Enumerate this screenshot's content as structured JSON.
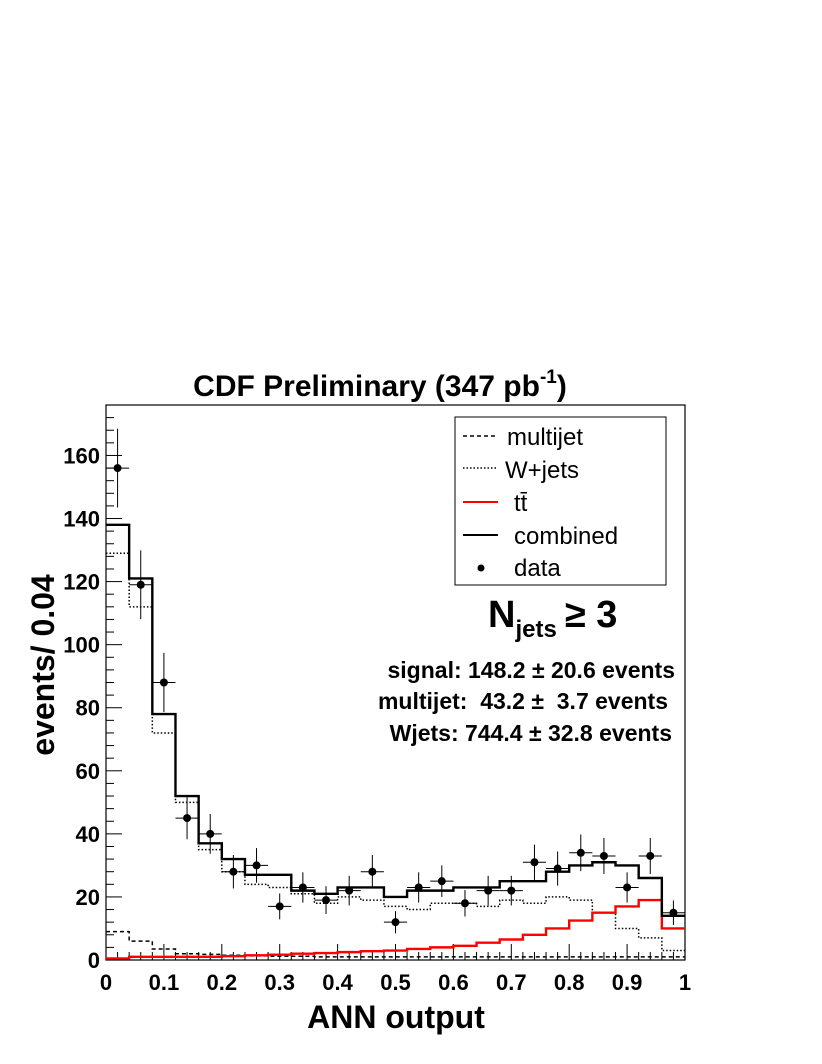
{
  "chart_data": {
    "type": "step-histogram",
    "title": "CDF Preliminary (347 pb",
    "title_sup": "-1",
    "title_close": ")",
    "xlabel": "ANN output",
    "ylabel": "events/ 0.04",
    "xlim": [
      0,
      1
    ],
    "ylim": [
      0,
      176
    ],
    "bin_width": 0.04,
    "bin_edges": [
      0,
      0.04,
      0.08,
      0.12,
      0.16,
      0.2,
      0.24,
      0.28,
      0.32,
      0.36,
      0.4,
      0.44,
      0.48,
      0.52,
      0.56,
      0.6,
      0.64,
      0.68,
      0.72,
      0.76,
      0.8,
      0.84,
      0.88,
      0.92,
      0.96,
      1.0
    ],
    "x_ticks": [
      "0",
      "0.1",
      "0.2",
      "0.3",
      "0.4",
      "0.5",
      "0.6",
      "0.7",
      "0.8",
      "0.9",
      "1"
    ],
    "x_tick_values": [
      0,
      0.1,
      0.2,
      0.3,
      0.4,
      0.5,
      0.6,
      0.7,
      0.8,
      0.9,
      1.0
    ],
    "y_ticks": [
      "0",
      "20",
      "40",
      "60",
      "80",
      "100",
      "120",
      "140",
      "160"
    ],
    "y_tick_values": [
      0,
      20,
      40,
      60,
      80,
      100,
      120,
      140,
      160
    ],
    "series": [
      {
        "name": "multijet",
        "style": "dashed",
        "color": "#000000",
        "values": [
          9,
          6,
          3.5,
          2,
          1.8,
          1.5,
          1.3,
          1.2,
          1.2,
          1,
          1,
          1,
          1,
          1,
          1,
          1,
          1,
          1,
          1,
          1,
          1,
          1,
          1,
          1,
          1
        ]
      },
      {
        "name": "W+jets",
        "style": "dotted",
        "color": "#000000",
        "values": [
          129,
          112,
          72,
          50,
          35,
          28,
          24,
          23,
          21,
          18,
          20,
          19,
          17,
          16,
          18,
          18,
          17,
          19,
          18,
          20,
          19,
          15,
          10,
          7,
          3
        ]
      },
      {
        "name": "tt̄",
        "style": "solid",
        "color": "#ff0000",
        "values": [
          0.5,
          1,
          1,
          1,
          1,
          1.2,
          1.5,
          1.7,
          2,
          2.2,
          2.5,
          2.8,
          3,
          3.5,
          4,
          4.5,
          5.5,
          6.5,
          8,
          10,
          12.5,
          15,
          17,
          19,
          10
        ]
      },
      {
        "name": "combined",
        "style": "solid",
        "color": "#000000",
        "values": [
          138,
          121,
          78,
          52,
          37,
          32,
          27,
          27,
          22,
          21,
          23,
          23,
          20,
          22,
          22,
          23,
          23,
          25,
          25,
          28,
          30,
          31,
          30,
          26,
          14
        ]
      }
    ],
    "data_points": {
      "name": "data",
      "x": [
        0.02,
        0.06,
        0.1,
        0.14,
        0.18,
        0.22,
        0.26,
        0.3,
        0.34,
        0.38,
        0.42,
        0.46,
        0.5,
        0.54,
        0.58,
        0.62,
        0.66,
        0.7,
        0.74,
        0.78,
        0.82,
        0.86,
        0.9,
        0.94,
        0.98
      ],
      "y": [
        156,
        119,
        88,
        45,
        40,
        28,
        30,
        17,
        23,
        19,
        22,
        28,
        12,
        23,
        25,
        18,
        22,
        22,
        31,
        29,
        34,
        33,
        23,
        33,
        15
      ],
      "err": [
        12.5,
        10.9,
        9.4,
        6.7,
        6.3,
        5.3,
        5.5,
        4.1,
        4.8,
        4.4,
        4.7,
        5.3,
        3.5,
        4.8,
        5.0,
        4.2,
        4.7,
        4.7,
        5.6,
        5.4,
        5.8,
        5.7,
        4.8,
        5.7,
        3.9
      ]
    },
    "legend": {
      "placement": "top-right",
      "entries": [
        "multijet",
        "W+jets",
        "tt̄",
        "combined",
        "data"
      ]
    },
    "annotations": {
      "njets_main": "N",
      "njets_sub": "jets",
      "njets_rel": "≥ 3",
      "lines": [
        "signal: 148.2 ± 20.6 events",
        "multijet:  43.2 ±  3.7 events",
        "Wjets: 744.4 ± 32.8 events"
      ]
    },
    "grid": false
  }
}
